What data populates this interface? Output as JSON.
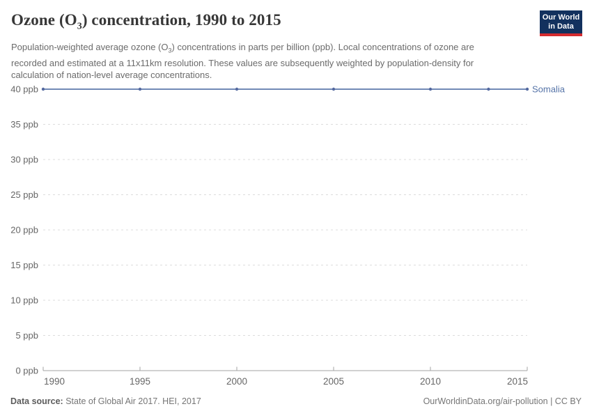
{
  "header": {
    "title_pre": "Ozone (O",
    "title_sub": "3",
    "title_post": ") concentration, 1990 to 2015",
    "subtitle_pre": "Population-weighted average ozone (O",
    "subtitle_sub": "3",
    "subtitle_post": ") concentrations in parts per billion (ppb). Local concentrations of ozone are recorded and estimated at a 11x11km resolution. These values are subsequently weighted by population-density for calculation of nation-level average concentrations."
  },
  "logo": {
    "line1": "Our World",
    "line2": "in Data",
    "bg_color": "#12315E",
    "bar_color": "#D42B2F"
  },
  "chart_data": {
    "type": "line",
    "title": "Ozone (O3) concentration, 1990 to 2015",
    "x": [
      1990,
      1995,
      2000,
      2005,
      2010,
      2013,
      2015
    ],
    "series": [
      {
        "name": "Somalia",
        "values": [
          40,
          40,
          40,
          40,
          40,
          40,
          40
        ],
        "line_color": "#7189B6",
        "marker_color": "#54699F",
        "label_color": "#5674A8"
      }
    ],
    "xlim": [
      1990,
      2015
    ],
    "ylim": [
      0,
      40
    ],
    "xlabel": "",
    "ylabel": "",
    "y_ticks": [
      {
        "value": 0,
        "label": "0 ppb"
      },
      {
        "value": 5,
        "label": "5 ppb"
      },
      {
        "value": 10,
        "label": "10 ppb"
      },
      {
        "value": 15,
        "label": "15 ppb"
      },
      {
        "value": 20,
        "label": "20 ppb"
      },
      {
        "value": 25,
        "label": "25 ppb"
      },
      {
        "value": 30,
        "label": "30 ppb"
      },
      {
        "value": 35,
        "label": "35 ppb"
      },
      {
        "value": 40,
        "label": "40 ppb"
      }
    ],
    "x_ticks": [
      {
        "value": 1990,
        "label": "1990"
      },
      {
        "value": 1995,
        "label": "1995"
      },
      {
        "value": 2000,
        "label": "2000"
      },
      {
        "value": 2005,
        "label": "2005"
      },
      {
        "value": 2010,
        "label": "2010"
      },
      {
        "value": 2015,
        "label": "2015"
      }
    ],
    "grid": "horizontal-dashed",
    "legend_position": "line-end-label",
    "grid_color": "#dcdcdc",
    "axis_color": "#a3a3a3",
    "tick_label_color": "#666666"
  },
  "footer": {
    "source_label": "Data source:",
    "source_text": " State of Global Air 2017. HEI, 2017",
    "right_text": "OurWorldinData.org/air-pollution | CC BY"
  }
}
